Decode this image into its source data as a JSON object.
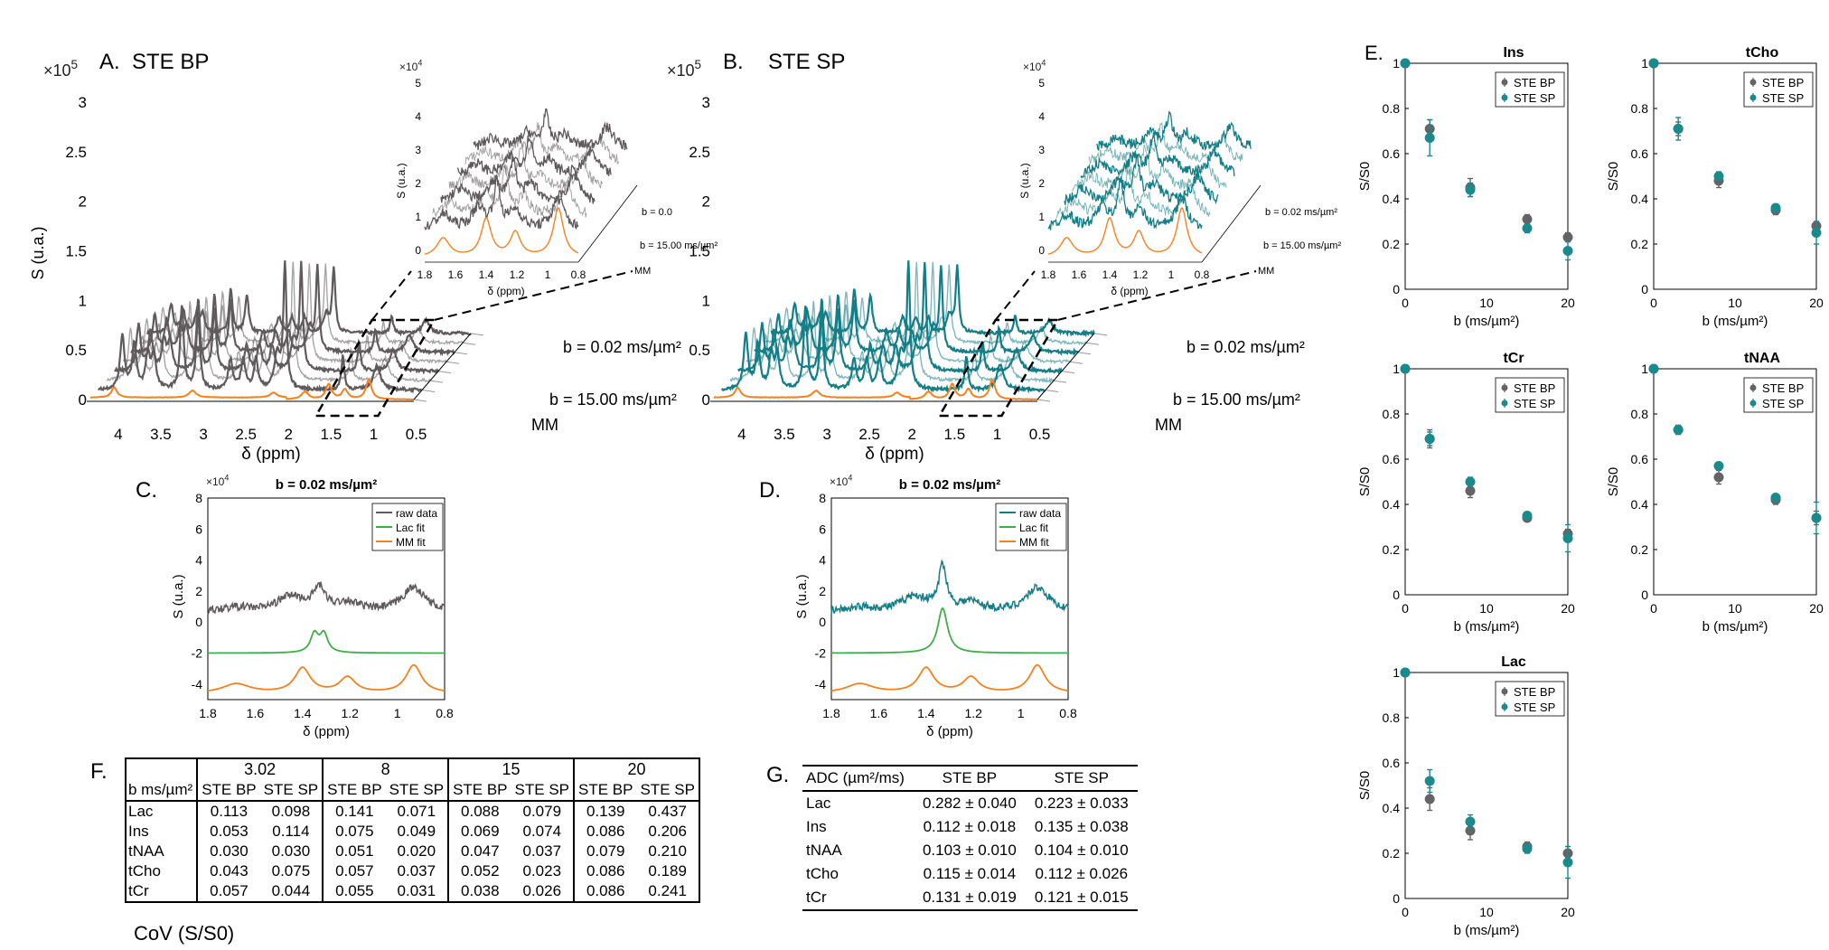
{
  "colors": {
    "bp": "#5f5a5c",
    "sp": "#147e86",
    "mm": "#f58220",
    "lac": "#3fae49",
    "scatter_bp": "#666366",
    "scatter_sp": "#1b8a8c"
  },
  "panels": {
    "A": {
      "label": "A.",
      "title": "STE BP",
      "exponent": "×10",
      "exponent_power": "5",
      "ylabel": "S (u.a.)",
      "xlabel": "δ (ppm)",
      "yticks": [
        "3",
        "2.5",
        "2",
        "1.5",
        "1",
        "0.5",
        "0"
      ],
      "xticks": [
        "4",
        "3.5",
        "3",
        "2.5",
        "2",
        "1.5",
        "1",
        "0.5"
      ],
      "depth_labels": [
        "b = 0.02 ms/µm²",
        "b = 15.00 ms/µm²",
        "MM"
      ],
      "inset": {
        "exponent": "×10",
        "exponent_power": "4",
        "ylabel": "S (u.a.)",
        "xlabel": "δ (ppm)",
        "yticks": [
          "5",
          "4",
          "3",
          "2",
          "1",
          "0"
        ],
        "xticks": [
          "1.8",
          "1.6",
          "1.4",
          "1.2",
          "1",
          "0.8"
        ],
        "depth_labels": [
          "b = 0.0",
          "b = 15.00 ms/µm²",
          "MM"
        ]
      }
    },
    "B": {
      "label": "B.",
      "title": "STE SP",
      "exponent": "×10",
      "exponent_power": "5",
      "yticks": [
        "3",
        "2.5",
        "2",
        "1.5",
        "1",
        "0.5",
        "0"
      ],
      "xlabel": "δ (ppm)",
      "xticks": [
        "4",
        "3.5",
        "3",
        "2.5",
        "2",
        "1.5",
        "1",
        "0.5"
      ],
      "depth_labels": [
        "b = 0.02 ms/µm²",
        "b = 15.00 ms/µm²",
        "MM"
      ],
      "inset": {
        "exponent": "×10",
        "exponent_power": "4",
        "ylabel": "S (u.a.)",
        "xlabel": "δ (ppm)",
        "yticks": [
          "5",
          "4",
          "3",
          "2",
          "1",
          "0"
        ],
        "xticks": [
          "1.8",
          "1.6",
          "1.4",
          "1.2",
          "1",
          "0.8"
        ],
        "depth_labels": [
          "b = 0.02 ms/µm²",
          "b = 15.00 ms/µm²",
          "MM"
        ]
      }
    },
    "C": {
      "label": "C.",
      "title": "b = 0.02 ms/µm²",
      "exponent": "×10",
      "exponent_power": "4",
      "ylabel": "S (u.a.)",
      "xlabel": "δ (ppm)",
      "yticks": [
        "8",
        "6",
        "4",
        "2",
        "0",
        "-2",
        "-4"
      ],
      "xticks": [
        "1.8",
        "1.6",
        "1.4",
        "1.2",
        "1",
        "0.8"
      ],
      "legend": [
        "raw data",
        "Lac fit",
        "MM fit"
      ]
    },
    "D": {
      "label": "D.",
      "title": "b = 0.02 ms/µm²",
      "exponent": "×10",
      "exponent_power": "4",
      "ylabel": "S (u.a.)",
      "xlabel": "δ (ppm)",
      "yticks": [
        "8",
        "6",
        "4",
        "2",
        "0",
        "-2",
        "-4"
      ],
      "xticks": [
        "1.8",
        "1.6",
        "1.4",
        "1.2",
        "1",
        "0.8"
      ],
      "legend": [
        "raw data",
        "Lac fit",
        "MM fit"
      ]
    },
    "E": {
      "label": "E.",
      "ylabel": "S/S0",
      "xlabel": "b (ms/µm²)",
      "yticks": [
        "1",
        "0.8",
        "0.6",
        "0.4",
        "0.2",
        "0"
      ],
      "xticks": [
        "0",
        "10",
        "20"
      ],
      "legend": [
        "STE BP",
        "STE SP"
      ]
    },
    "F": {
      "label": "F.",
      "caption": "CoV (S/S0)",
      "corner": "b ms/µm²",
      "b_values": [
        "3.02",
        "8",
        "15",
        "20"
      ],
      "sub_headers": [
        "STE BP",
        "STE SP"
      ],
      "rows": [
        {
          "metab": "Lac",
          "values": [
            "0.113",
            "0.098",
            "0.141",
            "0.071",
            "0.088",
            "0.079",
            "0.139",
            "0.437"
          ]
        },
        {
          "metab": "Ins",
          "values": [
            "0.053",
            "0.114",
            "0.075",
            "0.049",
            "0.069",
            "0.074",
            "0.086",
            "0.206"
          ]
        },
        {
          "metab": "tNAA",
          "values": [
            "0.030",
            "0.030",
            "0.051",
            "0.020",
            "0.047",
            "0.037",
            "0.079",
            "0.210"
          ]
        },
        {
          "metab": "tCho",
          "values": [
            "0.043",
            "0.075",
            "0.057",
            "0.037",
            "0.052",
            "0.023",
            "0.086",
            "0.189"
          ]
        },
        {
          "metab": "tCr",
          "values": [
            "0.057",
            "0.044",
            "0.055",
            "0.031",
            "0.038",
            "0.026",
            "0.086",
            "0.241"
          ]
        }
      ]
    },
    "G": {
      "label": "G.",
      "headers": [
        "ADC (µm²/ms)",
        "STE  BP",
        "STE SP"
      ],
      "rows": [
        {
          "metab": "Lac",
          "bp": "0.282 ± 0.040",
          "sp": "0.223 ± 0.033"
        },
        {
          "metab": "Ins",
          "bp": "0.112 ± 0.018",
          "sp": "0.135 ± 0.038"
        },
        {
          "metab": "tNAA",
          "bp": "0.103 ± 0.010",
          "sp": "0.104 ± 0.010"
        },
        {
          "metab": "tCho",
          "bp": "0.115 ± 0.014",
          "sp": "0.112 ± 0.026"
        },
        {
          "metab": "tCr",
          "bp": "0.131 ± 0.019",
          "sp": "0.121 ± 0.015"
        }
      ]
    }
  },
  "chart_data": [
    {
      "type": "scatter",
      "title": "Ins",
      "xlabel": "b (ms/µm²)",
      "ylabel": "S/S0",
      "xlim": [
        0,
        20
      ],
      "ylim": [
        0,
        1
      ],
      "legend": "top-right",
      "series": [
        {
          "name": "STE BP",
          "x": [
            0,
            3.02,
            8,
            15,
            20
          ],
          "y": [
            1,
            0.71,
            0.45,
            0.31,
            0.23
          ],
          "err": [
            0,
            0.04,
            0.04,
            0.02,
            0.02
          ]
        },
        {
          "name": "STE SP",
          "x": [
            0,
            3.02,
            8,
            15,
            20
          ],
          "y": [
            1,
            0.67,
            0.44,
            0.27,
            0.17
          ],
          "err": [
            0,
            0.08,
            0.03,
            0.02,
            0.04
          ]
        }
      ]
    },
    {
      "type": "scatter",
      "title": "tCho",
      "xlabel": "b (ms/µm²)",
      "ylabel": "S/S0",
      "xlim": [
        0,
        20
      ],
      "ylim": [
        0,
        1
      ],
      "legend": "top-right",
      "series": [
        {
          "name": "STE BP",
          "x": [
            0,
            3.02,
            8,
            15,
            20
          ],
          "y": [
            1,
            0.71,
            0.48,
            0.35,
            0.28
          ],
          "err": [
            0,
            0.03,
            0.03,
            0.02,
            0.02
          ]
        },
        {
          "name": "STE SP",
          "x": [
            0,
            3.02,
            8,
            15,
            20
          ],
          "y": [
            1,
            0.71,
            0.5,
            0.36,
            0.25
          ],
          "err": [
            0,
            0.05,
            0.02,
            0.01,
            0.05
          ]
        }
      ]
    },
    {
      "type": "scatter",
      "title": "tCr",
      "xlabel": "b (ms/µm²)",
      "ylabel": "S/S0",
      "xlim": [
        0,
        20
      ],
      "ylim": [
        0,
        1
      ],
      "legend": "top-right",
      "series": [
        {
          "name": "STE BP",
          "x": [
            0,
            3.02,
            8,
            15,
            20
          ],
          "y": [
            1,
            0.69,
            0.46,
            0.34,
            0.27
          ],
          "err": [
            0,
            0.04,
            0.03,
            0.01,
            0.02
          ]
        },
        {
          "name": "STE SP",
          "x": [
            0,
            3.02,
            8,
            15,
            20
          ],
          "y": [
            1,
            0.69,
            0.5,
            0.35,
            0.25
          ],
          "err": [
            0,
            0.03,
            0.02,
            0.01,
            0.06
          ]
        }
      ]
    },
    {
      "type": "scatter",
      "title": "tNAA",
      "xlabel": "b (ms/µm²)",
      "ylabel": "S/S0",
      "xlim": [
        0,
        20
      ],
      "ylim": [
        0,
        1
      ],
      "legend": "top-right",
      "series": [
        {
          "name": "STE BP",
          "x": [
            0,
            3.02,
            8,
            15,
            20
          ],
          "y": [
            1,
            0.73,
            0.52,
            0.42,
            0.34
          ],
          "err": [
            0,
            0.02,
            0.03,
            0.02,
            0.03
          ]
        },
        {
          "name": "STE SP",
          "x": [
            0,
            3.02,
            8,
            15,
            20
          ],
          "y": [
            1,
            0.73,
            0.57,
            0.43,
            0.34
          ],
          "err": [
            0,
            0.02,
            0.01,
            0.01,
            0.07
          ]
        }
      ]
    },
    {
      "type": "scatter",
      "title": "Lac",
      "xlabel": "b (ms/µm²)",
      "ylabel": "S/S0",
      "xlim": [
        0,
        20
      ],
      "ylim": [
        0,
        1
      ],
      "legend": "top-right",
      "series": [
        {
          "name": "STE BP",
          "x": [
            0,
            3.02,
            8,
            15,
            20
          ],
          "y": [
            1,
            0.44,
            0.3,
            0.23,
            0.2
          ],
          "err": [
            0,
            0.05,
            0.04,
            0.02,
            0.03
          ]
        },
        {
          "name": "STE SP",
          "x": [
            0,
            3.02,
            8,
            15,
            20
          ],
          "y": [
            1,
            0.52,
            0.34,
            0.22,
            0.16
          ],
          "err": [
            0,
            0.05,
            0.03,
            0.02,
            0.07
          ]
        }
      ]
    }
  ]
}
